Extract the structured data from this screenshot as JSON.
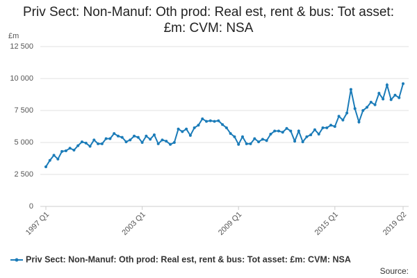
{
  "chart_data": {
    "type": "line",
    "title": "Priv Sect: Non-Manuf: Oth prod: Real est, rent & bus: Tot asset: £m: CVM: NSA",
    "y_label": "£m",
    "source": "Source:",
    "categories": [
      "1997 Q1",
      null,
      null,
      null,
      null,
      null,
      null,
      null,
      null,
      null,
      null,
      null,
      null,
      null,
      null,
      null,
      null,
      null,
      null,
      null,
      null,
      null,
      null,
      null,
      "2003 Q1",
      null,
      null,
      null,
      null,
      null,
      null,
      null,
      null,
      null,
      null,
      null,
      null,
      null,
      null,
      null,
      null,
      null,
      null,
      null,
      null,
      null,
      null,
      null,
      "2009 Q1",
      null,
      null,
      null,
      null,
      null,
      null,
      null,
      null,
      null,
      null,
      null,
      null,
      null,
      null,
      null,
      null,
      null,
      null,
      null,
      null,
      null,
      null,
      null,
      "2015 Q1",
      null,
      null,
      null,
      null,
      null,
      null,
      null,
      null,
      null,
      null,
      null,
      null,
      null,
      null,
      null,
      null,
      "2019 Q2"
    ],
    "series": [
      {
        "name": "Priv Sect: Non-Manuf: Oth prod: Real est, rent & bus: Tot asset: £m: CVM: NSA",
        "color": "#1a7bb8",
        "values": [
          3100,
          3600,
          4000,
          3700,
          4300,
          4350,
          4550,
          4400,
          4750,
          5050,
          4950,
          4700,
          5200,
          4900,
          4900,
          5300,
          5300,
          5700,
          5500,
          5400,
          5050,
          5200,
          5500,
          5400,
          5000,
          5500,
          5250,
          5600,
          4900,
          5200,
          5100,
          4850,
          5000,
          6050,
          5850,
          6050,
          5550,
          6150,
          6350,
          6850,
          6650,
          6700,
          6650,
          6700,
          6400,
          6150,
          5700,
          5450,
          4850,
          5450,
          4900,
          4900,
          5300,
          5050,
          5250,
          5150,
          5650,
          5900,
          5900,
          5800,
          6100,
          5900,
          5100,
          5900,
          5050,
          5450,
          5600,
          6000,
          5650,
          6150,
          6150,
          6350,
          6250,
          7050,
          6750,
          7300,
          9150,
          7650,
          6600,
          7500,
          7750,
          8150,
          7950,
          8850,
          8400,
          9500,
          8350,
          8700,
          8500,
          9600
        ]
      }
    ],
    "ylim": [
      0,
      12500
    ],
    "yticks": [
      0,
      {
        "value": 2500,
        "label": "2 500"
      },
      {
        "value": 5000,
        "label": "5 000"
      },
      {
        "value": 7500,
        "label": "7 500"
      },
      {
        "value": 10000,
        "label": "10 000"
      },
      {
        "value": 12500,
        "label": "12 500"
      }
    ],
    "grid": true
  }
}
